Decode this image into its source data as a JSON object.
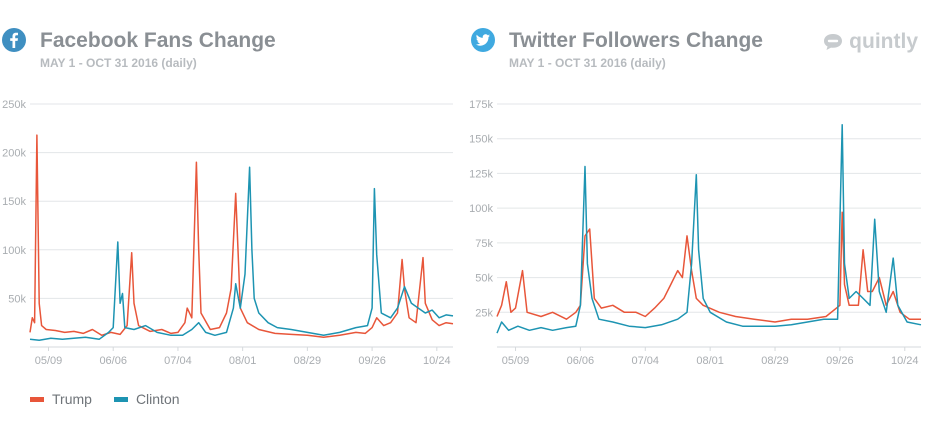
{
  "brand": {
    "name": "quintly"
  },
  "colors": {
    "trump": "#e8563a",
    "clinton": "#1d94b2",
    "grid": "#e3e6e8",
    "axis_text": "#a9adb1"
  },
  "panels": [
    {
      "title": "Facebook Fans Change",
      "subtitle": "MAY 1 - OCT 31 2016 (daily)",
      "icon": "facebook-icon"
    },
    {
      "title": "Twitter Followers Change",
      "subtitle": "MAY 1 - OCT 31 2016 (daily)",
      "icon": "twitter-icon"
    }
  ],
  "legend": {
    "trump": "Trump",
    "clinton": "Clinton"
  },
  "chart_data": [
    {
      "type": "line",
      "title": "Facebook Fans Change",
      "subtitle": "MAY 1 - OCT 31 2016 (daily)",
      "x_range": [
        "2016-05-01",
        "2016-10-31"
      ],
      "x_tick_labels": [
        "05/09",
        "06/06",
        "07/04",
        "08/01",
        "08/29",
        "09/26",
        "10/24"
      ],
      "x_tick_dates": [
        "2016-05-09",
        "2016-06-06",
        "2016-07-04",
        "2016-08-01",
        "2016-08-29",
        "2016-09-26",
        "2016-10-24"
      ],
      "y_tick_labels": [
        "50k",
        "100k",
        "150k",
        "200k",
        "250k"
      ],
      "y_tick_values": [
        50000,
        100000,
        150000,
        200000,
        250000
      ],
      "ylim": [
        0,
        250000
      ],
      "grid": true,
      "legend_position": "bottom-left",
      "series": [
        {
          "name": "Trump",
          "color": "#e8563a",
          "points": [
            [
              "2016-05-01",
              15000
            ],
            [
              "2016-05-02",
              30000
            ],
            [
              "2016-05-03",
              25000
            ],
            [
              "2016-05-04",
              218000
            ],
            [
              "2016-05-05",
              45000
            ],
            [
              "2016-05-06",
              22000
            ],
            [
              "2016-05-08",
              18000
            ],
            [
              "2016-05-12",
              17000
            ],
            [
              "2016-05-16",
              15000
            ],
            [
              "2016-05-20",
              16000
            ],
            [
              "2016-05-24",
              14000
            ],
            [
              "2016-05-28",
              18000
            ],
            [
              "2016-06-01",
              12000
            ],
            [
              "2016-06-05",
              15000
            ],
            [
              "2016-06-09",
              13000
            ],
            [
              "2016-06-12",
              22000
            ],
            [
              "2016-06-14",
              97000
            ],
            [
              "2016-06-15",
              45000
            ],
            [
              "2016-06-17",
              22000
            ],
            [
              "2016-06-22",
              16000
            ],
            [
              "2016-06-27",
              18000
            ],
            [
              "2016-07-01",
              14000
            ],
            [
              "2016-07-04",
              15000
            ],
            [
              "2016-07-07",
              25000
            ],
            [
              "2016-07-08",
              40000
            ],
            [
              "2016-07-10",
              30000
            ],
            [
              "2016-07-12",
              190000
            ],
            [
              "2016-07-13",
              100000
            ],
            [
              "2016-07-14",
              35000
            ],
            [
              "2016-07-18",
              18000
            ],
            [
              "2016-07-22",
              20000
            ],
            [
              "2016-07-25",
              35000
            ],
            [
              "2016-07-27",
              60000
            ],
            [
              "2016-07-29",
              158000
            ],
            [
              "2016-07-30",
              100000
            ],
            [
              "2016-07-31",
              40000
            ],
            [
              "2016-08-03",
              25000
            ],
            [
              "2016-08-08",
              18000
            ],
            [
              "2016-08-15",
              14000
            ],
            [
              "2016-08-22",
              13000
            ],
            [
              "2016-08-29",
              12000
            ],
            [
              "2016-09-05",
              10000
            ],
            [
              "2016-09-12",
              12000
            ],
            [
              "2016-09-19",
              15000
            ],
            [
              "2016-09-23",
              14000
            ],
            [
              "2016-09-26",
              20000
            ],
            [
              "2016-09-28",
              30000
            ],
            [
              "2016-10-01",
              22000
            ],
            [
              "2016-10-04",
              25000
            ],
            [
              "2016-10-07",
              35000
            ],
            [
              "2016-10-09",
              90000
            ],
            [
              "2016-10-10",
              60000
            ],
            [
              "2016-10-12",
              30000
            ],
            [
              "2016-10-15",
              25000
            ],
            [
              "2016-10-18",
              92000
            ],
            [
              "2016-10-19",
              45000
            ],
            [
              "2016-10-22",
              28000
            ],
            [
              "2016-10-25",
              22000
            ],
            [
              "2016-10-28",
              25000
            ],
            [
              "2016-10-31",
              24000
            ]
          ]
        },
        {
          "name": "Clinton",
          "color": "#1d94b2",
          "points": [
            [
              "2016-05-01",
              8000
            ],
            [
              "2016-05-05",
              7000
            ],
            [
              "2016-05-10",
              9000
            ],
            [
              "2016-05-15",
              8000
            ],
            [
              "2016-05-20",
              9000
            ],
            [
              "2016-05-25",
              10000
            ],
            [
              "2016-05-31",
              8000
            ],
            [
              "2016-06-04",
              15000
            ],
            [
              "2016-06-06",
              20000
            ],
            [
              "2016-06-08",
              108000
            ],
            [
              "2016-06-09",
              45000
            ],
            [
              "2016-06-10",
              55000
            ],
            [
              "2016-06-11",
              20000
            ],
            [
              "2016-06-15",
              18000
            ],
            [
              "2016-06-20",
              22000
            ],
            [
              "2016-06-25",
              15000
            ],
            [
              "2016-07-01",
              12000
            ],
            [
              "2016-07-06",
              12000
            ],
            [
              "2016-07-10",
              18000
            ],
            [
              "2016-07-13",
              25000
            ],
            [
              "2016-07-16",
              15000
            ],
            [
              "2016-07-20",
              12000
            ],
            [
              "2016-07-25",
              15000
            ],
            [
              "2016-07-28",
              40000
            ],
            [
              "2016-07-29",
              65000
            ],
            [
              "2016-07-31",
              40000
            ],
            [
              "2016-08-02",
              75000
            ],
            [
              "2016-08-04",
              185000
            ],
            [
              "2016-08-05",
              100000
            ],
            [
              "2016-08-06",
              50000
            ],
            [
              "2016-08-08",
              35000
            ],
            [
              "2016-08-12",
              25000
            ],
            [
              "2016-08-16",
              20000
            ],
            [
              "2016-08-22",
              18000
            ],
            [
              "2016-08-29",
              15000
            ],
            [
              "2016-09-05",
              12000
            ],
            [
              "2016-09-12",
              15000
            ],
            [
              "2016-09-19",
              20000
            ],
            [
              "2016-09-24",
              22000
            ],
            [
              "2016-09-26",
              40000
            ],
            [
              "2016-09-27",
              163000
            ],
            [
              "2016-09-28",
              95000
            ],
            [
              "2016-09-30",
              35000
            ],
            [
              "2016-10-04",
              30000
            ],
            [
              "2016-10-07",
              40000
            ],
            [
              "2016-10-10",
              62000
            ],
            [
              "2016-10-13",
              45000
            ],
            [
              "2016-10-16",
              40000
            ],
            [
              "2016-10-19",
              35000
            ],
            [
              "2016-10-22",
              38000
            ],
            [
              "2016-10-25",
              30000
            ],
            [
              "2016-10-28",
              33000
            ],
            [
              "2016-10-31",
              32000
            ]
          ]
        }
      ]
    },
    {
      "type": "line",
      "title": "Twitter Followers Change",
      "subtitle": "MAY 1 - OCT 31 2016 (daily)",
      "x_range": [
        "2016-05-01",
        "2016-10-31"
      ],
      "x_tick_labels": [
        "05/09",
        "06/06",
        "07/04",
        "08/01",
        "08/29",
        "09/26",
        "10/24"
      ],
      "x_tick_dates": [
        "2016-05-09",
        "2016-06-06",
        "2016-07-04",
        "2016-08-01",
        "2016-08-29",
        "2016-09-26",
        "2016-10-24"
      ],
      "y_tick_labels": [
        "25k",
        "50k",
        "75k",
        "100k",
        "125k",
        "150k",
        "175k"
      ],
      "y_tick_values": [
        25000,
        50000,
        75000,
        100000,
        125000,
        150000,
        175000
      ],
      "ylim": [
        0,
        175000
      ],
      "grid": true,
      "legend_position": "bottom-left",
      "series": [
        {
          "name": "Trump",
          "color": "#e8563a",
          "points": [
            [
              "2016-05-01",
              22000
            ],
            [
              "2016-05-03",
              30000
            ],
            [
              "2016-05-05",
              47000
            ],
            [
              "2016-05-07",
              25000
            ],
            [
              "2016-05-09",
              28000
            ],
            [
              "2016-05-12",
              55000
            ],
            [
              "2016-05-14",
              25000
            ],
            [
              "2016-05-20",
              22000
            ],
            [
              "2016-05-25",
              25000
            ],
            [
              "2016-05-31",
              20000
            ],
            [
              "2016-06-04",
              25000
            ],
            [
              "2016-06-06",
              30000
            ],
            [
              "2016-06-08",
              80000
            ],
            [
              "2016-06-10",
              85000
            ],
            [
              "2016-06-12",
              35000
            ],
            [
              "2016-06-15",
              28000
            ],
            [
              "2016-06-20",
              30000
            ],
            [
              "2016-06-25",
              25000
            ],
            [
              "2016-06-30",
              25000
            ],
            [
              "2016-07-04",
              22000
            ],
            [
              "2016-07-08",
              28000
            ],
            [
              "2016-07-12",
              35000
            ],
            [
              "2016-07-15",
              45000
            ],
            [
              "2016-07-18",
              55000
            ],
            [
              "2016-07-20",
              50000
            ],
            [
              "2016-07-22",
              80000
            ],
            [
              "2016-07-24",
              55000
            ],
            [
              "2016-07-26",
              35000
            ],
            [
              "2016-07-29",
              30000
            ],
            [
              "2016-08-05",
              25000
            ],
            [
              "2016-08-12",
              22000
            ],
            [
              "2016-08-20",
              20000
            ],
            [
              "2016-08-29",
              18000
            ],
            [
              "2016-09-05",
              20000
            ],
            [
              "2016-09-12",
              20000
            ],
            [
              "2016-09-20",
              22000
            ],
            [
              "2016-09-26",
              30000
            ],
            [
              "2016-09-27",
              97000
            ],
            [
              "2016-09-28",
              45000
            ],
            [
              "2016-09-30",
              30000
            ],
            [
              "2016-10-04",
              30000
            ],
            [
              "2016-10-06",
              70000
            ],
            [
              "2016-10-08",
              40000
            ],
            [
              "2016-10-10",
              40000
            ],
            [
              "2016-10-13",
              50000
            ],
            [
              "2016-10-16",
              30000
            ],
            [
              "2016-10-19",
              40000
            ],
            [
              "2016-10-22",
              25000
            ],
            [
              "2016-10-26",
              20000
            ],
            [
              "2016-10-31",
              20000
            ]
          ]
        },
        {
          "name": "Clinton",
          "color": "#1d94b2",
          "points": [
            [
              "2016-05-01",
              10000
            ],
            [
              "2016-05-03",
              18000
            ],
            [
              "2016-05-06",
              12000
            ],
            [
              "2016-05-10",
              15000
            ],
            [
              "2016-05-15",
              12000
            ],
            [
              "2016-05-20",
              14000
            ],
            [
              "2016-05-25",
              12000
            ],
            [
              "2016-05-31",
              14000
            ],
            [
              "2016-06-04",
              15000
            ],
            [
              "2016-06-06",
              30000
            ],
            [
              "2016-06-08",
              130000
            ],
            [
              "2016-06-09",
              60000
            ],
            [
              "2016-06-11",
              35000
            ],
            [
              "2016-06-14",
              20000
            ],
            [
              "2016-06-20",
              18000
            ],
            [
              "2016-06-27",
              15000
            ],
            [
              "2016-07-04",
              14000
            ],
            [
              "2016-07-11",
              16000
            ],
            [
              "2016-07-18",
              20000
            ],
            [
              "2016-07-22",
              25000
            ],
            [
              "2016-07-24",
              60000
            ],
            [
              "2016-07-26",
              124000
            ],
            [
              "2016-07-27",
              70000
            ],
            [
              "2016-07-29",
              35000
            ],
            [
              "2016-08-01",
              25000
            ],
            [
              "2016-08-08",
              18000
            ],
            [
              "2016-08-15",
              15000
            ],
            [
              "2016-08-22",
              15000
            ],
            [
              "2016-08-29",
              15000
            ],
            [
              "2016-09-05",
              16000
            ],
            [
              "2016-09-12",
              18000
            ],
            [
              "2016-09-19",
              20000
            ],
            [
              "2016-09-25",
              20000
            ],
            [
              "2016-09-27",
              160000
            ],
            [
              "2016-09-28",
              60000
            ],
            [
              "2016-09-30",
              35000
            ],
            [
              "2016-10-03",
              40000
            ],
            [
              "2016-10-06",
              35000
            ],
            [
              "2016-10-09",
              30000
            ],
            [
              "2016-10-11",
              92000
            ],
            [
              "2016-10-13",
              40000
            ],
            [
              "2016-10-16",
              25000
            ],
            [
              "2016-10-19",
              64000
            ],
            [
              "2016-10-21",
              30000
            ],
            [
              "2016-10-25",
              18000
            ],
            [
              "2016-10-31",
              16000
            ]
          ]
        }
      ]
    }
  ]
}
